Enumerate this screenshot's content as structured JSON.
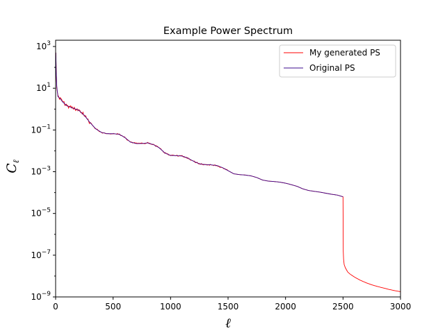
{
  "chart_data": {
    "type": "line",
    "title": "Example Power Spectrum",
    "xlabel": "ℓ",
    "ylabel": "C",
    "ylabel_subscript": "ℓ",
    "xlim": [
      0,
      3000
    ],
    "ylim_exponents": [
      -9,
      3.3
    ],
    "y_scale": "log",
    "grid": false,
    "legend_placement": "upper-right",
    "x_ticks": [
      {
        "value": 0,
        "label": "0"
      },
      {
        "value": 500,
        "label": "500"
      },
      {
        "value": 1000,
        "label": "1000"
      },
      {
        "value": 1500,
        "label": "1500"
      },
      {
        "value": 2000,
        "label": "2000"
      },
      {
        "value": 2500,
        "label": "2500"
      },
      {
        "value": 3000,
        "label": "3000"
      }
    ],
    "y_ticks": [
      {
        "exp": 3,
        "base": "10",
        "sup": "3"
      },
      {
        "exp": 1,
        "base": "10",
        "sup": "1"
      },
      {
        "exp": -1,
        "base": "10",
        "sup": "−1"
      },
      {
        "exp": -3,
        "base": "10",
        "sup": "−3"
      },
      {
        "exp": -5,
        "base": "10",
        "sup": "−5"
      },
      {
        "exp": -7,
        "base": "10",
        "sup": "−7"
      },
      {
        "exp": -9,
        "base": "10",
        "sup": "−9"
      }
    ],
    "series": [
      {
        "name": "My generated PS",
        "color": "#ff0000",
        "x": [
          2,
          5,
          10,
          20,
          40,
          60,
          80,
          100,
          150,
          200,
          250,
          300,
          350,
          400,
          450,
          500,
          550,
          600,
          650,
          700,
          750,
          800,
          850,
          900,
          950,
          1000,
          1050,
          1100,
          1150,
          1200,
          1250,
          1300,
          1350,
          1400,
          1450,
          1500,
          1550,
          1600,
          1650,
          1700,
          1750,
          1800,
          1850,
          1900,
          1950,
          2000,
          2050,
          2100,
          2150,
          2200,
          2250,
          2300,
          2350,
          2400,
          2450,
          2500,
          2502,
          2505,
          2510,
          2520,
          2540,
          2560,
          2600,
          2650,
          2700,
          2750,
          2800,
          2850,
          2900,
          2950,
          3000
        ],
        "exp": [
          2.7,
          1.8,
          1.1,
          0.6,
          0.5,
          0.35,
          0.25,
          0.15,
          0.05,
          -0.05,
          -0.3,
          -0.65,
          -0.95,
          -1.12,
          -1.18,
          -1.18,
          -1.2,
          -1.35,
          -1.58,
          -1.65,
          -1.65,
          -1.62,
          -1.7,
          -1.85,
          -2.1,
          -2.22,
          -2.23,
          -2.25,
          -2.35,
          -2.5,
          -2.62,
          -2.66,
          -2.67,
          -2.7,
          -2.8,
          -2.95,
          -3.1,
          -3.14,
          -3.16,
          -3.2,
          -3.28,
          -3.4,
          -3.45,
          -3.47,
          -3.5,
          -3.55,
          -3.62,
          -3.7,
          -3.82,
          -3.9,
          -3.94,
          -3.98,
          -4.03,
          -4.08,
          -4.12,
          -4.2,
          -6.8,
          -7.2,
          -7.45,
          -7.6,
          -7.8,
          -7.9,
          -8.05,
          -8.2,
          -8.32,
          -8.42,
          -8.5,
          -8.57,
          -8.64,
          -8.7,
          -8.75
        ]
      },
      {
        "name": "Original PS",
        "color": "#3b0a8c",
        "x": [
          2,
          5,
          10,
          20,
          40,
          60,
          80,
          100,
          150,
          200,
          250,
          300,
          350,
          400,
          450,
          500,
          550,
          600,
          650,
          700,
          750,
          800,
          850,
          900,
          950,
          1000,
          1050,
          1100,
          1150,
          1200,
          1250,
          1300,
          1350,
          1400,
          1450,
          1500,
          1550,
          1600,
          1650,
          1700,
          1750,
          1800,
          1850,
          1900,
          1950,
          2000,
          2050,
          2100,
          2150,
          2200,
          2250,
          2300,
          2350,
          2400,
          2450,
          2500
        ],
        "exp": [
          2.7,
          1.8,
          1.1,
          0.6,
          0.5,
          0.35,
          0.25,
          0.15,
          0.05,
          -0.05,
          -0.3,
          -0.65,
          -0.95,
          -1.12,
          -1.18,
          -1.18,
          -1.2,
          -1.35,
          -1.58,
          -1.65,
          -1.65,
          -1.62,
          -1.7,
          -1.85,
          -2.1,
          -2.22,
          -2.23,
          -2.25,
          -2.35,
          -2.5,
          -2.62,
          -2.66,
          -2.67,
          -2.7,
          -2.8,
          -2.95,
          -3.1,
          -3.14,
          -3.16,
          -3.2,
          -3.28,
          -3.4,
          -3.45,
          -3.47,
          -3.5,
          -3.55,
          -3.62,
          -3.7,
          -3.82,
          -3.9,
          -3.94,
          -3.98,
          -4.03,
          -4.08,
          -4.12,
          -4.2
        ]
      }
    ]
  }
}
